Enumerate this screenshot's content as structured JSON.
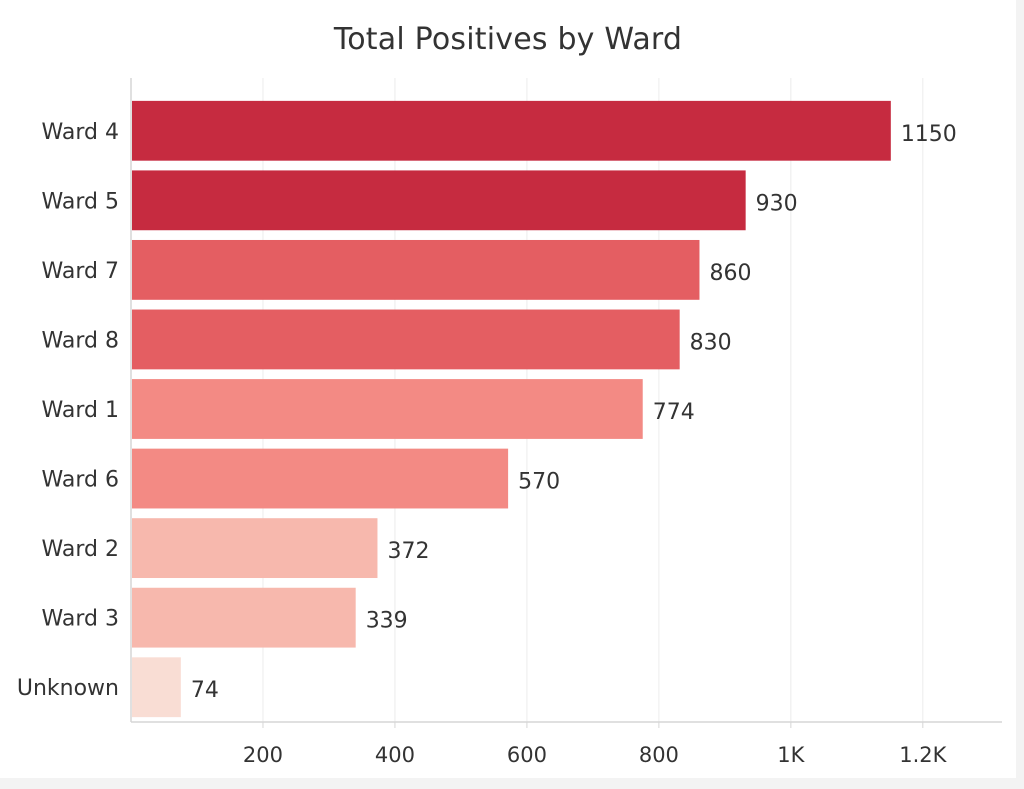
{
  "chart_data": {
    "type": "bar",
    "orientation": "horizontal",
    "title": "Total Positives by Ward",
    "categories": [
      "Ward 4",
      "Ward 5",
      "Ward 7",
      "Ward 8",
      "Ward 1",
      "Ward 6",
      "Ward 2",
      "Ward 3",
      "Unknown"
    ],
    "values": [
      1150,
      930,
      860,
      830,
      774,
      570,
      372,
      339,
      74
    ],
    "data_labels": [
      "1150",
      "930",
      "860",
      "830",
      "774",
      "570",
      "372",
      "339",
      "74"
    ],
    "bar_colors": [
      "#c62b40",
      "#c62b40",
      "#e45e62",
      "#e45e62",
      "#f38a84",
      "#f38a84",
      "#f7b8ad",
      "#f7b8ad",
      "#f9ddd4"
    ],
    "xlim": [
      0,
      1320
    ],
    "x_ticks": [
      200,
      400,
      600,
      800,
      1000,
      1200
    ],
    "x_tick_labels": [
      "200",
      "400",
      "600",
      "800",
      "1K",
      "1.2K"
    ],
    "grid": true,
    "xlabel": "",
    "ylabel": ""
  }
}
